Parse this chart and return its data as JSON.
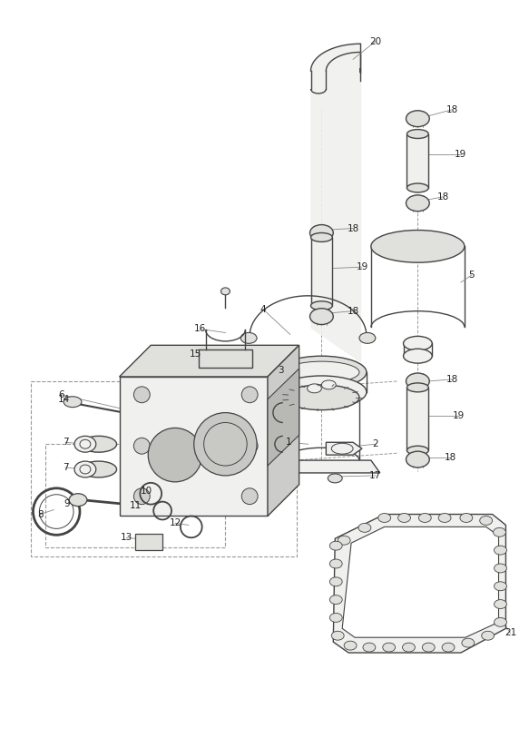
{
  "bg_color": "#ffffff",
  "figsize": [
    5.83,
    8.24
  ],
  "dpi": 100,
  "gray": "#444444",
  "lgray": "#999999",
  "fill_light": "#f0f0ee",
  "fill_mid": "#e0e0dc",
  "fill_dark": "#ccccca"
}
